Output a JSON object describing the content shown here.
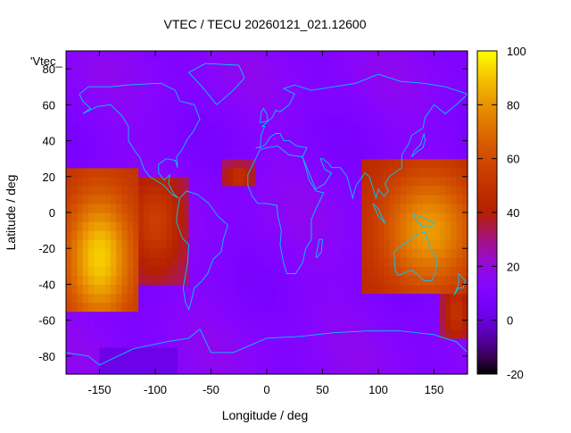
{
  "chart_data": {
    "type": "heatmap",
    "title": "VTEC / TECU 20260121_021.12600",
    "xlabel": "Longitude / deg",
    "ylabel": "Latitude / deg",
    "key_label": "'Vtec_",
    "xlim": [
      -180,
      180
    ],
    "ylim": [
      -90,
      90
    ],
    "x_ticks": [
      -150,
      -100,
      -50,
      0,
      50,
      100,
      150
    ],
    "y_ticks": [
      -80,
      -60,
      -40,
      -20,
      0,
      20,
      40,
      60,
      80
    ],
    "colorbar": {
      "range": [
        -20,
        100
      ],
      "ticks": [
        -20,
        0,
        20,
        40,
        60,
        80,
        100
      ],
      "palette": "black-blue-purple-red-orange-yellow"
    },
    "grid_step": 5,
    "field_description": "global total electron content map; Earth coastlines overlaid",
    "enhancement_regions": [
      {
        "lon_min": -180,
        "lon_max": -115,
        "lat_min": -55,
        "lat_max": 25,
        "peak_lon": -150,
        "peak_lat": -25,
        "peak_value": 92
      },
      {
        "lon_min": -120,
        "lon_max": -70,
        "lat_min": -40,
        "lat_max": 20,
        "peak_lon": -100,
        "peak_lat": -5,
        "peak_value": 55
      },
      {
        "lon_min": -40,
        "lon_max": -10,
        "lat_min": 15,
        "lat_max": 30,
        "peak_lon": -25,
        "peak_lat": 20,
        "peak_value": 50
      },
      {
        "lon_min": 85,
        "lon_max": 180,
        "lat_min": -45,
        "lat_max": 30,
        "peak_lon": 145,
        "peak_lat": -10,
        "peak_value": 82
      },
      {
        "lon_min": 155,
        "lon_max": 180,
        "lat_min": -70,
        "lat_max": -30,
        "peak_lon": 170,
        "peak_lat": -55,
        "peak_value": 50
      }
    ],
    "background_value": 12,
    "low_region": {
      "lon_min": -150,
      "lon_max": -80,
      "lat_min": -90,
      "lat_max": -75,
      "value": -2
    },
    "coastline_color": "#00c8ff"
  }
}
